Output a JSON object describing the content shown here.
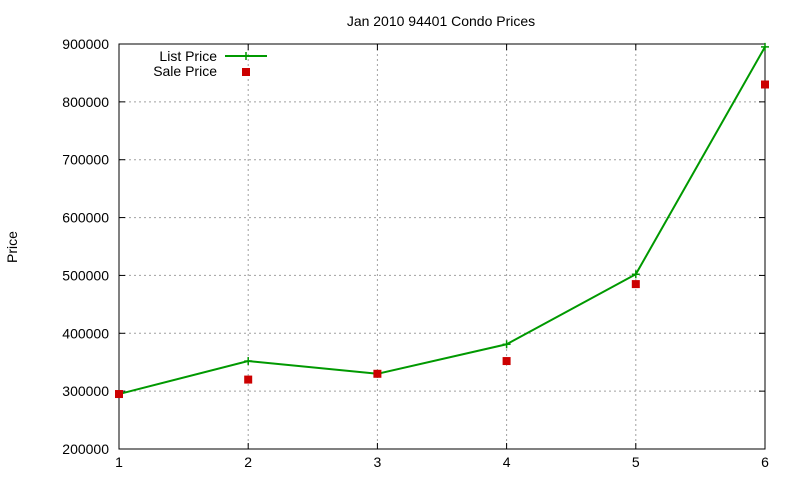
{
  "chart_data": {
    "type": "line",
    "title": "Jan 2010 94401 Condo Prices",
    "xlabel": "",
    "ylabel": "Price",
    "x": [
      1,
      2,
      3,
      4,
      5,
      6
    ],
    "xlim": [
      1,
      6
    ],
    "ylim": [
      200000,
      900000
    ],
    "xticks": [
      "1",
      "2",
      "3",
      "4",
      "5",
      "6"
    ],
    "yticks": [
      "200000",
      "300000",
      "400000",
      "500000",
      "600000",
      "700000",
      "800000",
      "900000"
    ],
    "grid": true,
    "legend_position": "top-left",
    "series": [
      {
        "name": "List Price",
        "style": "line-with-plus-markers",
        "color": "#009900",
        "values": [
          295000,
          352000,
          330000,
          381000,
          502000,
          895000
        ]
      },
      {
        "name": "Sale Price",
        "style": "square-markers",
        "color": "#cc0000",
        "values": [
          295000,
          320000,
          330000,
          352000,
          485000,
          830000
        ]
      }
    ]
  }
}
